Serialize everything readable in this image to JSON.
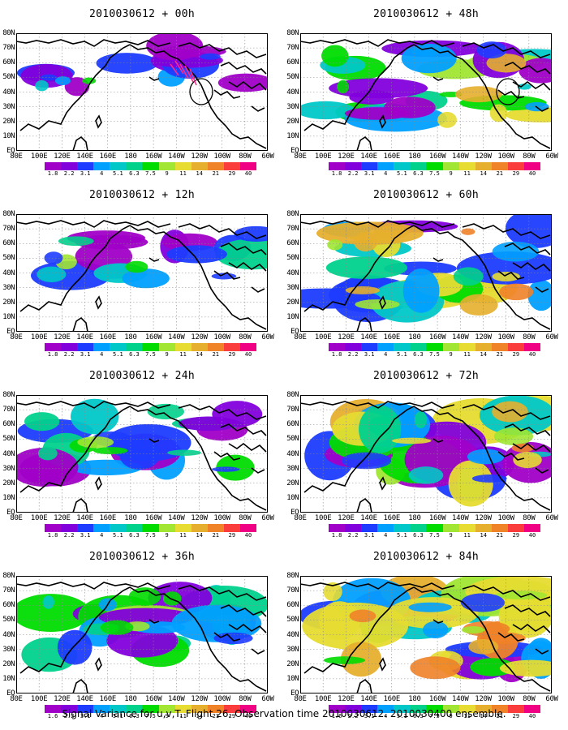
{
  "caption": "Signal Variance for u,v,T. Flight 26. Observation time 2010030612. 2010030400 ensemble.",
  "panels": [
    {
      "title": "2010030612 + 00h",
      "level": 0.15,
      "circle": true,
      "arrows": true
    },
    {
      "title": "2010030612 + 48h",
      "level": 0.7,
      "circle": true,
      "arrows": false
    },
    {
      "title": "2010030612 + 12h",
      "level": 0.3,
      "circle": false,
      "arrows": false
    },
    {
      "title": "2010030612 + 60h",
      "level": 0.8,
      "circle": false,
      "arrows": false
    },
    {
      "title": "2010030612 + 24h",
      "level": 0.45,
      "circle": false,
      "arrows": false
    },
    {
      "title": "2010030612 + 72h",
      "level": 0.85,
      "circle": false,
      "arrows": false
    },
    {
      "title": "2010030612 + 36h",
      "level": 0.6,
      "circle": false,
      "arrows": false
    },
    {
      "title": "2010030612 + 84h",
      "level": 0.95,
      "circle": false,
      "arrows": false
    }
  ],
  "lat_labels": [
    "80N",
    "70N",
    "60N",
    "50N",
    "40N",
    "30N",
    "20N",
    "10N",
    "EQ"
  ],
  "lon_labels": [
    "80E",
    "100E",
    "120E",
    "140E",
    "160E",
    "180",
    "160W",
    "140W",
    "120W",
    "100W",
    "80W",
    "60W"
  ],
  "colorbar_labels": [
    "1.6",
    "2.2",
    "3.1",
    "4",
    "5.1",
    "6.3",
    "7.5",
    "9",
    "11",
    "14",
    "21",
    "29",
    "40"
  ],
  "colorbar_labels_alt": [
    "1.8",
    "2.2",
    "3.1",
    "4",
    "5.1",
    "6.3",
    "7.5",
    "9",
    "11",
    "14",
    "21",
    "29",
    "40"
  ],
  "colorbar_colors": [
    "#a000c8",
    "#8200dc",
    "#1e3cff",
    "#00a0ff",
    "#00c8c8",
    "#00d28c",
    "#00dc00",
    "#a0e632",
    "#e6dc32",
    "#e6af2d",
    "#f08228",
    "#fa3c3c",
    "#f00082"
  ]
}
